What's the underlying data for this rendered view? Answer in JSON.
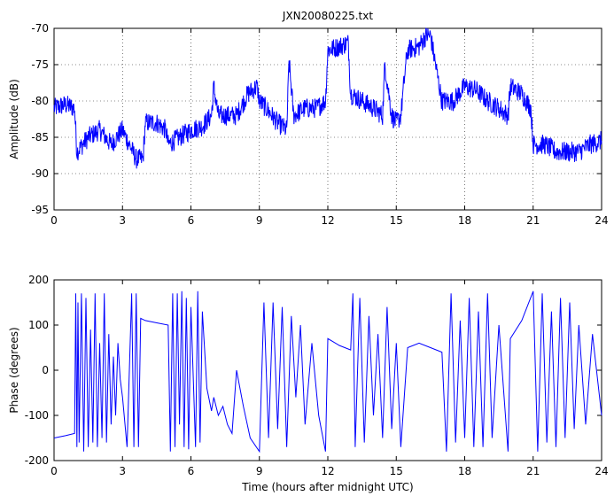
{
  "chart_data": [
    {
      "type": "line",
      "title": "JXN20080225.txt",
      "xlabel": "",
      "ylabel": "Amplitude (dB)",
      "xlim": [
        0,
        24
      ],
      "ylim": [
        -95,
        -70
      ],
      "xticks": [
        0,
        3,
        6,
        9,
        12,
        15,
        18,
        21,
        24
      ],
      "yticks": [
        -95,
        -90,
        -85,
        -80,
        -75,
        -70
      ],
      "grid": true,
      "color": "#0000ff",
      "series": [
        {
          "x": [
            0,
            0.5,
            0.9,
            1.0,
            1.5,
            2.0,
            2.5,
            3.0,
            3.3,
            3.6,
            3.9,
            4.0,
            4.5,
            4.9,
            5.0,
            5.5,
            6.0,
            6.5,
            6.9,
            7.0,
            7.2,
            7.5,
            8.0,
            8.5,
            8.9,
            9.0,
            9.3,
            9.8,
            10.2,
            10.3,
            10.5,
            11.0,
            11.5,
            11.9,
            12.0,
            12.5,
            12.9,
            13.0,
            13.5,
            14.0,
            14.4,
            14.5,
            14.8,
            15.0,
            15.2,
            15.4,
            15.5,
            16.0,
            16.3,
            16.5,
            17.0,
            17.5,
            18.0,
            18.5,
            19.0,
            19.5,
            19.9,
            20.0,
            20.5,
            20.9,
            21.0,
            21.5,
            22.0,
            22.5,
            23.0,
            23.5,
            24.0
          ],
          "values": [
            -81,
            -80.5,
            -81,
            -87,
            -85,
            -84,
            -86,
            -84,
            -86,
            -88,
            -88,
            -83,
            -83,
            -84,
            -86,
            -85,
            -84,
            -83.5,
            -82,
            -78,
            -82,
            -82,
            -82,
            -79,
            -78,
            -80,
            -81,
            -83,
            -84,
            -74.5,
            -82,
            -81,
            -81,
            -80,
            -73,
            -72.5,
            -72,
            -79,
            -80,
            -81,
            -82,
            -75,
            -82,
            -83,
            -82,
            -75.5,
            -73,
            -72.5,
            -71,
            -71,
            -80,
            -80,
            -78,
            -78.5,
            -80,
            -81,
            -82,
            -78,
            -79,
            -81,
            -86,
            -86,
            -87,
            -87,
            -87,
            -86,
            -85.5
          ]
        }
      ]
    },
    {
      "type": "line",
      "title": "",
      "xlabel": "Time (hours after midnight UTC)",
      "ylabel": "Phase (degrees)",
      "xlim": [
        0,
        24
      ],
      "ylim": [
        -200,
        200
      ],
      "xticks": [
        0,
        3,
        6,
        9,
        12,
        15,
        18,
        21,
        24
      ],
      "yticks": [
        -200,
        -100,
        0,
        100,
        200
      ],
      "grid": false,
      "color": "#0000ff",
      "series": [
        {
          "x": [
            0,
            0.5,
            0.9,
            0.95,
            1.0,
            1.05,
            1.1,
            1.2,
            1.3,
            1.4,
            1.5,
            1.6,
            1.7,
            1.8,
            1.9,
            2.0,
            2.1,
            2.2,
            2.3,
            2.4,
            2.5,
            2.6,
            2.7,
            2.8,
            2.9,
            3.0,
            3.2,
            3.4,
            3.5,
            3.6,
            3.7,
            3.8,
            4.0,
            4.5,
            5.0,
            5.1,
            5.2,
            5.3,
            5.4,
            5.5,
            5.6,
            5.7,
            5.8,
            5.9,
            6.0,
            6.2,
            6.3,
            6.4,
            6.5,
            6.7,
            6.9,
            7.0,
            7.2,
            7.4,
            7.6,
            7.8,
            8.0,
            8.3,
            8.6,
            9.0,
            9.2,
            9.4,
            9.6,
            9.8,
            10.0,
            10.2,
            10.4,
            10.6,
            10.8,
            11.0,
            11.3,
            11.6,
            11.9,
            12.0,
            12.5,
            13.0,
            13.1,
            13.2,
            13.4,
            13.6,
            13.8,
            14.0,
            14.2,
            14.4,
            14.6,
            14.8,
            15.0,
            15.2,
            15.5,
            16.0,
            16.5,
            17.0,
            17.2,
            17.4,
            17.6,
            17.8,
            18.0,
            18.2,
            18.4,
            18.6,
            18.8,
            19.0,
            19.2,
            19.5,
            19.9,
            20.0,
            20.5,
            21.0,
            21.2,
            21.4,
            21.6,
            21.8,
            22.0,
            22.2,
            22.4,
            22.6,
            22.8,
            23.0,
            23.3,
            23.6,
            24.0
          ],
          "values": [
            -150,
            -145,
            -140,
            170,
            -170,
            150,
            -160,
            170,
            -180,
            160,
            -170,
            90,
            -160,
            170,
            -170,
            60,
            -150,
            170,
            -160,
            80,
            -120,
            30,
            -100,
            60,
            -20,
            -60,
            -170,
            170,
            -170,
            170,
            -170,
            115,
            110,
            105,
            100,
            -180,
            170,
            -170,
            170,
            -120,
            175,
            -170,
            160,
            -175,
            140,
            -170,
            175,
            -160,
            130,
            -40,
            -90,
            -60,
            -100,
            -80,
            -120,
            -140,
            0,
            -80,
            -150,
            -180,
            150,
            -150,
            150,
            -130,
            140,
            -170,
            120,
            -60,
            100,
            -120,
            60,
            -100,
            -180,
            70,
            55,
            45,
            170,
            -170,
            160,
            -160,
            120,
            -100,
            80,
            -150,
            140,
            -130,
            60,
            -170,
            50,
            60,
            50,
            40,
            -180,
            170,
            -160,
            110,
            -150,
            160,
            -170,
            130,
            -170,
            170,
            -150,
            100,
            -180,
            70,
            110,
            175,
            -180,
            170,
            -160,
            130,
            -170,
            160,
            -150,
            150,
            -130,
            100,
            -120,
            80,
            -100
          ],
          "marker": "line"
        }
      ]
    }
  ]
}
